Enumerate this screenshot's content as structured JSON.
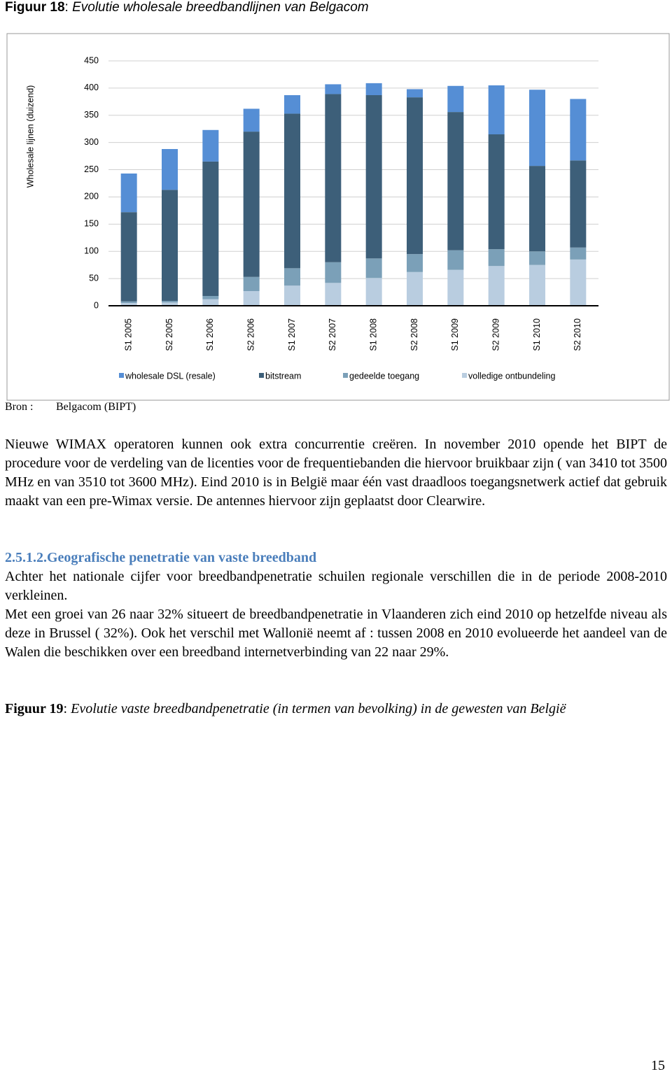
{
  "figure_18": {
    "label": "Figuur 18",
    "separator": ":",
    "caption": "Evolutie wholesale breedbandlijnen van Belgacom"
  },
  "chart_data": {
    "type": "bar",
    "stacked": true,
    "y_label": "Wholesale lijnen (duizend)",
    "categories": [
      "S1 2005",
      "S2 2005",
      "S1 2006",
      "S2 2006",
      "S1 2007",
      "S2 2007",
      "S1 2008",
      "S2 2008",
      "S1 2009",
      "S2 2009",
      "S1 2010",
      "S2 2010"
    ],
    "series": [
      {
        "name": "wholesale DSL (resale)",
        "color": "#558ed5",
        "values": [
          71,
          75,
          58,
          42,
          34,
          18,
          22,
          15,
          48,
          90,
          140,
          113
        ]
      },
      {
        "name": "bitstream",
        "color": "#3d5f79",
        "values": [
          164,
          204,
          247,
          267,
          284,
          309,
          300,
          288,
          254,
          211,
          157,
          160
        ]
      },
      {
        "name": "gedeelde toegang",
        "color": "#7ba0b8",
        "values": [
          3,
          3,
          6,
          26,
          32,
          38,
          36,
          33,
          36,
          31,
          25,
          22
        ]
      },
      {
        "name": "volledige ontbundeling",
        "color": "#b9cde0",
        "values": [
          5,
          6,
          12,
          27,
          37,
          42,
          51,
          62,
          66,
          73,
          75,
          85
        ]
      }
    ],
    "ylim": [
      0,
      450
    ],
    "yticks": [
      0,
      50,
      100,
      150,
      200,
      250,
      300,
      350,
      400,
      450
    ],
    "grid": true,
    "legend": "bottom"
  },
  "source": {
    "label": "Bron :",
    "text": "Belgacom (BIPT)"
  },
  "paragraph_1": "Nieuwe WIMAX operatoren kunnen ook extra concurrentie creëren. In november 2010 opende het BIPT de procedure voor de verdeling van de licenties voor de frequentiebanden die hiervoor bruikbaar zijn ( van 3410 tot 3500 MHz en van 3510 tot 3600 MHz). Eind 2010 is in België maar één vast draadloos toegangsnetwerk actief dat gebruik maakt van een pre-Wimax versie. De antennes hiervoor zijn geplaatst door Clearwire.",
  "section": {
    "number": "2.5.1.2.",
    "title": "Geografische penetratie van vaste breedband"
  },
  "paragraph_2": "Achter het nationale cijfer voor breedbandpenetratie schuilen regionale verschillen die in de periode 2008-2010 verkleinen.",
  "paragraph_3": "Met een groei van 26 naar 32% situeert de breedbandpenetratie in Vlaanderen zich eind 2010 op hetzelfde niveau als deze in Brussel ( 32%). Ook het verschil met Wallonië neemt af : tussen 2008 en 2010 evolueerde het aandeel van de Walen die beschikken over een breedband internetverbinding van 22 naar 29%.",
  "figure_19": {
    "label": "Figuur 19",
    "separator": ":",
    "caption": "Evolutie vaste breedbandpenetratie (in termen van bevolking) in de gewesten van België"
  },
  "page_number": "15"
}
